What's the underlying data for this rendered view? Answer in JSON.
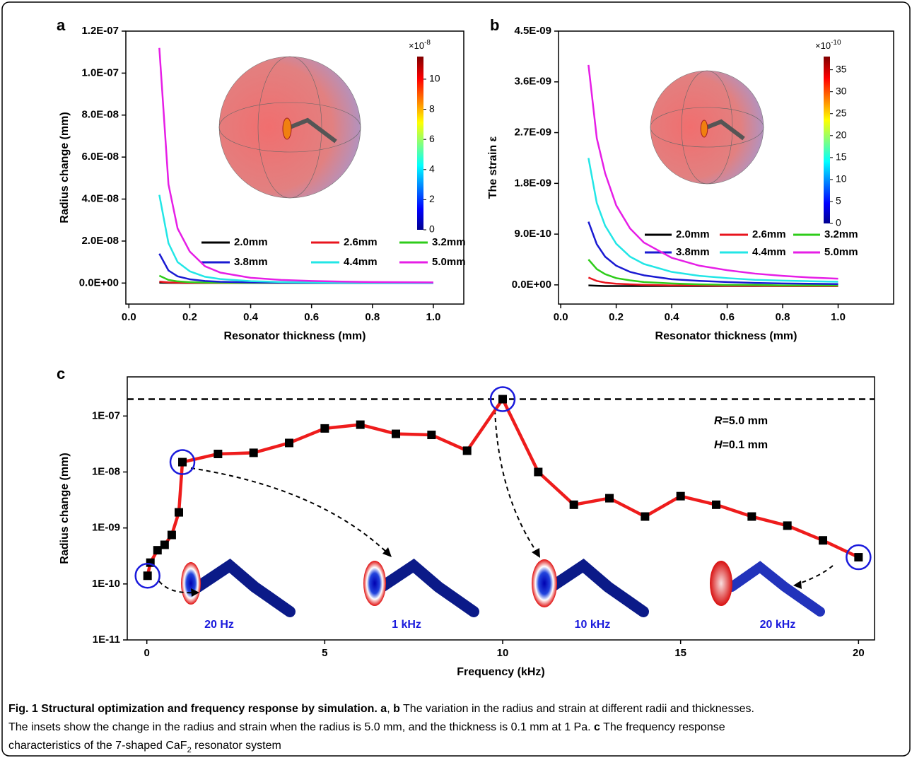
{
  "chart_data": [
    {
      "type": "line",
      "panel_label": "a",
      "x_label": "Resonator thickness (mm)",
      "y_label": "Radius change (mm)",
      "xlim": [
        -0.01,
        1.1
      ],
      "xticks": [
        {
          "value": 0,
          "label": "0.0"
        },
        0.2,
        0.4,
        0.6,
        0.8,
        {
          "value": 1,
          "label": "1.0"
        }
      ],
      "ylim": [
        -1e-08,
        1.2e-07
      ],
      "yticks": [
        {
          "value": 0,
          "label": "0.0E+00"
        },
        {
          "value": 2e-08,
          "label": "2.0E-08"
        },
        {
          "value": 4e-08,
          "label": "4.0E-08"
        },
        {
          "value": 6e-08,
          "label": "6.0E-08"
        },
        {
          "value": 8e-08,
          "label": "8.0E-08"
        },
        {
          "value": 1e-07,
          "label": "1.0E-07"
        },
        {
          "value": 1.2e-07,
          "label": "1.2E-07"
        }
      ],
      "x": [
        0.1,
        0.13,
        0.16,
        0.2,
        0.25,
        0.3,
        0.4,
        0.5,
        0.6,
        0.7,
        0.8,
        0.9,
        1.0
      ],
      "series": [
        {
          "name": "2.0mm",
          "color": "#000000",
          "values": [
            2e-10,
            1e-10,
            6e-11,
            4e-11,
            2e-11,
            1e-11,
            1e-11,
            0,
            0,
            0,
            0,
            0,
            0
          ]
        },
        {
          "name": "2.6mm",
          "color": "#e8141e",
          "values": [
            7e-10,
            3e-10,
            1.8e-10,
            1e-10,
            6e-11,
            4e-11,
            2e-11,
            1e-11,
            1e-11,
            0,
            0,
            0,
            0
          ]
        },
        {
          "name": "3.2mm",
          "color": "#2ecc1a",
          "values": [
            3.5e-09,
            1.5e-09,
            8e-10,
            4.5e-10,
            2.5e-10,
            1.6e-10,
            8e-11,
            5e-11,
            3e-11,
            2e-11,
            1e-11,
            1e-11,
            1e-11
          ]
        },
        {
          "name": "3.8mm",
          "color": "#1a1ad2",
          "values": [
            1.4e-08,
            6e-09,
            3.2e-09,
            1.8e-09,
            1e-09,
            6e-10,
            3e-10,
            2e-10,
            1e-10,
            7e-11,
            5e-11,
            4e-11,
            3e-11
          ]
        },
        {
          "name": "4.4mm",
          "color": "#22e6e6",
          "values": [
            4.2e-08,
            1.9e-08,
            1e-08,
            5.6e-09,
            3e-09,
            1.9e-09,
            9e-10,
            5e-10,
            3e-10,
            2e-10,
            1.5e-10,
            1e-10,
            1e-10
          ]
        },
        {
          "name": "5.0mm",
          "color": "#e61ee6",
          "values": [
            1.12e-07,
            4.7e-08,
            2.6e-08,
            1.5e-08,
            8e-09,
            5e-09,
            2.5e-09,
            1.5e-09,
            1e-09,
            7e-10,
            5e-10,
            4e-10,
            3e-10
          ]
        }
      ],
      "colorbar": {
        "label": "×10",
        "exponent": "-8",
        "range": [
          0,
          11.5
        ],
        "ticks": [
          0,
          2,
          4,
          6,
          8,
          10
        ]
      }
    },
    {
      "type": "line",
      "panel_label": "b",
      "x_label": "Resonator thickness (mm)",
      "y_label": "The strain ε",
      "xlim": [
        -0.008,
        1.2
      ],
      "xticks": [
        {
          "value": 0,
          "label": "0.0"
        },
        0.2,
        0.4,
        0.6,
        0.8,
        {
          "value": 1,
          "label": "1.0"
        }
      ],
      "ylim": [
        -3.4e-10,
        4.5e-09
      ],
      "yticks": [
        {
          "value": 0,
          "label": "0.0E+00"
        },
        {
          "value": 9e-10,
          "label": "9.0E-10"
        },
        {
          "value": 1.8e-09,
          "label": "1.8E-09"
        },
        {
          "value": 2.7e-09,
          "label": "2.7E-09"
        },
        {
          "value": 3.6e-09,
          "label": "3.6E-09"
        },
        {
          "value": 4.5e-09,
          "label": "4.5E-09"
        }
      ],
      "x": [
        0.1,
        0.13,
        0.16,
        0.2,
        0.25,
        0.3,
        0.4,
        0.5,
        0.6,
        0.7,
        0.8,
        0.9,
        1.0
      ],
      "series": [
        {
          "name": "2.0mm",
          "color": "#000000",
          "values": [
            -1e-11,
            -1.5e-11,
            -2e-11,
            -2e-11,
            -2e-11,
            -2e-11,
            -2e-11,
            -2e-11,
            -2e-11,
            -2e-11,
            -2e-11,
            -2e-11,
            -2e-11
          ]
        },
        {
          "name": "2.6mm",
          "color": "#e8141e",
          "values": [
            1.3e-10,
            7e-11,
            4e-11,
            2e-11,
            1e-11,
            0,
            -1e-11,
            -1e-11,
            -1.5e-11,
            -1.5e-11,
            -2e-11,
            -2e-11,
            -2e-11
          ]
        },
        {
          "name": "3.2mm",
          "color": "#2ecc1a",
          "values": [
            4.5e-10,
            2.8e-10,
            1.9e-10,
            1.2e-10,
            8e-11,
            5e-11,
            2.5e-11,
            1e-11,
            0,
            0,
            -1e-11,
            -1e-11,
            -1e-11
          ]
        },
        {
          "name": "3.8mm",
          "color": "#1a1ad2",
          "values": [
            1.12e-09,
            7.2e-10,
            5e-10,
            3.4e-10,
            2.3e-10,
            1.7e-10,
            1e-10,
            7e-11,
            5e-11,
            3.5e-11,
            2.5e-11,
            2e-11,
            1.5e-11
          ]
        },
        {
          "name": "4.4mm",
          "color": "#22e6e6",
          "values": [
            2.25e-09,
            1.45e-09,
            1.05e-09,
            7.3e-10,
            5e-10,
            3.7e-10,
            2.3e-10,
            1.6e-10,
            1.2e-10,
            9e-11,
            7.5e-11,
            6.5e-11,
            5.5e-11
          ]
        },
        {
          "name": "5.0mm",
          "color": "#e61ee6",
          "values": [
            3.9e-09,
            2.6e-09,
            1.98e-09,
            1.41e-09,
            1e-09,
            7.5e-10,
            4.8e-10,
            3.4e-10,
            2.6e-10,
            2e-10,
            1.6e-10,
            1.3e-10,
            1.1e-10
          ]
        }
      ],
      "colorbar": {
        "label": "×10",
        "exponent": "-10",
        "range": [
          0,
          38
        ],
        "ticks": [
          0,
          5,
          10,
          15,
          20,
          25,
          30,
          35
        ]
      }
    },
    {
      "type": "line",
      "panel_label": "c",
      "x_label": "Frequency (kHz)",
      "y_label": "Radius change (mm)",
      "y_scale": "log",
      "markers": true,
      "xlim": [
        -0.55,
        20.45
      ],
      "xticks": [
        0,
        5,
        10,
        15,
        20
      ],
      "ylim": [
        1e-11,
        5e-07
      ],
      "yticks": [
        {
          "value": 1e-11,
          "label": "1E-11"
        },
        {
          "value": 1e-10,
          "label": "1E-10"
        },
        {
          "value": 1e-09,
          "label": "1E-09"
        },
        {
          "value": 1e-08,
          "label": "1E-08"
        },
        {
          "value": 1e-07,
          "label": "1E-07"
        }
      ],
      "reference_line": 2e-07,
      "x": [
        0.02,
        0.1,
        0.3,
        0.5,
        0.7,
        0.9,
        1,
        2,
        3,
        4,
        5,
        6,
        7,
        8,
        9,
        10,
        11,
        12,
        13,
        14,
        15,
        16,
        17,
        18,
        19,
        20
      ],
      "series": [
        {
          "color": "#ee1c1c",
          "marker_color": "#000000",
          "values": [
            1.4e-10,
            2.4e-10,
            4e-10,
            5e-10,
            7.5e-10,
            1.9e-09,
            1.5e-08,
            2.1e-08,
            2.2e-08,
            3.3e-08,
            6e-08,
            7e-08,
            4.8e-08,
            4.6e-08,
            2.4e-08,
            2e-07,
            1e-08,
            2.6e-09,
            3.4e-09,
            1.6e-09,
            3.7e-09,
            2.6e-09,
            1.6e-09,
            1.1e-09,
            6e-10,
            3e-10
          ]
        }
      ],
      "highlight_color": "#1a1adc",
      "highlight_points": [
        0,
        6,
        15,
        25
      ],
      "annotations": [
        {
          "symbol": "R",
          "text": "=5.0 mm"
        },
        {
          "symbol": "H",
          "text": "=0.1 mm"
        }
      ],
      "inset_labels": [
        "20 Hz",
        "1 kHz",
        "10 kHz",
        "20 kHz"
      ]
    }
  ],
  "caption": {
    "lines": [
      [
        {
          "text": "Fig. 1 Structural optimization and frequency response by simulation.",
          "style": "bold"
        },
        {
          "text": " a",
          "style": "bold"
        },
        {
          "text": ", "
        },
        {
          "text": "b",
          "style": "bold"
        },
        {
          "text": " The variation in the radius and strain at different radii and thicknesses."
        }
      ],
      [
        {
          "text": "The insets show the change in the radius and strain when the radius is 5.0 mm, and the thickness is 0.1 mm at 1 Pa. "
        },
        {
          "text": "c",
          "style": "bold"
        },
        {
          "text": " The frequency response"
        }
      ],
      [
        {
          "text": "characteristics of the 7-shaped CaF"
        },
        {
          "text": "2",
          "style": "subscript"
        },
        {
          "text": " resonator system"
        }
      ]
    ]
  }
}
